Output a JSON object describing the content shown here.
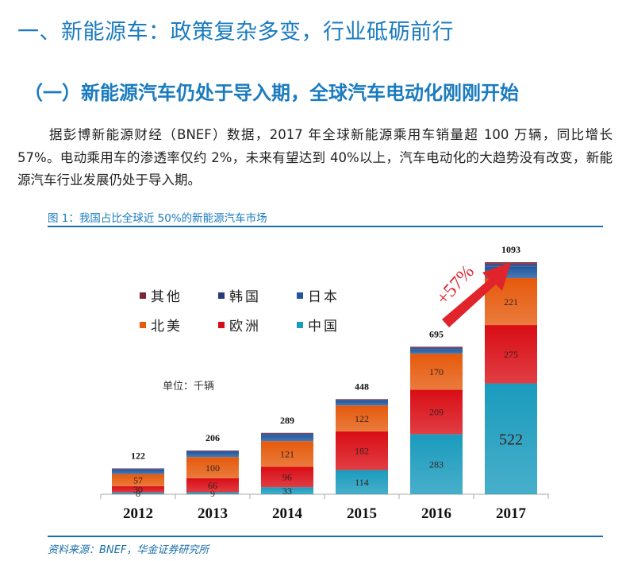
{
  "document": {
    "section_heading": "一、新能源车：政策复杂多变，行业砥砺前行",
    "subsection_heading": "（一）新能源汽车仍处于导入期，全球汽车电动化刚刚开始",
    "paragraph": "据彭博新能源财经（BNEF）数据，2017 年全球新能源乘用车销量超 100 万辆，同比增长 57%。电动乘用车的渗透率仅约 2%，未来有望达到 40%以上，汽车电动化的大趋势没有改变，新能源汽车行业发展仍处于导入期。",
    "figure_title": "图 1：我国占比全球近 50%的新能源汽车市场",
    "source": "资料来源：BNEF，华金证券研究所"
  },
  "chart_data": {
    "type": "bar",
    "stacked": true,
    "title": "",
    "unit_label": "单位：千辆",
    "xlabel": "",
    "ylabel": "",
    "ylim": [
      0,
      1150
    ],
    "grid": false,
    "legend_position": "top-left",
    "annotation": "+57%",
    "categories": [
      "2012",
      "2013",
      "2014",
      "2015",
      "2016",
      "2017"
    ],
    "totals": [
      122,
      206,
      289,
      448,
      695,
      1093
    ],
    "series": [
      {
        "name": "中国",
        "color": "#1a9bbd",
        "values": [
          8,
          9,
          33,
          114,
          283,
          522
        ],
        "labeled": true
      },
      {
        "name": "欧洲",
        "color": "#d90d15",
        "values": [
          30,
          66,
          96,
          182,
          209,
          275
        ],
        "labeled": true
      },
      {
        "name": "北美",
        "color": "#e55a0c",
        "values": [
          57,
          100,
          121,
          122,
          170,
          221
        ],
        "labeled": true
      },
      {
        "name": "日本",
        "color": "#1f58a0",
        "values": [
          22,
          25,
          30,
          22,
          22,
          55
        ],
        "labeled": false
      },
      {
        "name": "韩国",
        "color": "#2a3a7a",
        "values": [
          3,
          4,
          6,
          5,
          7,
          12
        ],
        "labeled": false
      },
      {
        "name": "其他",
        "color": "#7a2535",
        "values": [
          2,
          2,
          3,
          3,
          4,
          8
        ],
        "labeled": false
      }
    ],
    "legend_order": [
      "其他",
      "韩国",
      "日本",
      "北美",
      "欧洲",
      "中国"
    ]
  }
}
